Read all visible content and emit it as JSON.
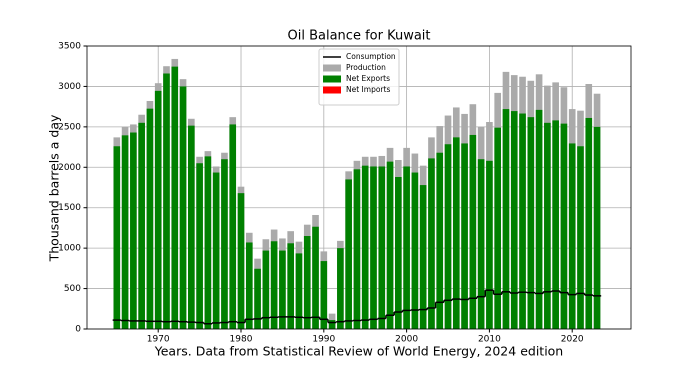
{
  "chart_data": {
    "type": "bar",
    "title": "Oil Balance for Kuwait",
    "x_label": "Years. Data from Statistical Review of World Energy, 2024 edition",
    "y_label": "Thousand barrels a day",
    "x": [
      1965,
      1966,
      1967,
      1968,
      1969,
      1970,
      1971,
      1972,
      1973,
      1974,
      1975,
      1976,
      1977,
      1978,
      1979,
      1980,
      1981,
      1982,
      1983,
      1984,
      1985,
      1986,
      1987,
      1988,
      1989,
      1990,
      1991,
      1992,
      1993,
      1994,
      1995,
      1996,
      1997,
      1998,
      1999,
      2000,
      2001,
      2002,
      2003,
      2004,
      2005,
      2006,
      2007,
      2008,
      2009,
      2010,
      2011,
      2012,
      2013,
      2014,
      2015,
      2016,
      2017,
      2018,
      2019,
      2020,
      2021,
      2022,
      2023
    ],
    "series": [
      {
        "name": "Consumption",
        "color": "#000000",
        "kind": "step",
        "values": [
          110,
          105,
          100,
          100,
          95,
          95,
          90,
          95,
          90,
          85,
          80,
          65,
          75,
          80,
          90,
          80,
          120,
          125,
          140,
          145,
          150,
          150,
          145,
          140,
          145,
          120,
          80,
          90,
          100,
          105,
          110,
          120,
          130,
          170,
          210,
          230,
          235,
          240,
          260,
          330,
          355,
          370,
          365,
          380,
          400,
          480,
          430,
          460,
          445,
          455,
          450,
          440,
          460,
          470,
          450,
          425,
          440,
          420,
          410
        ]
      },
      {
        "name": "Production",
        "color": "#aaaaaa",
        "kind": "bar",
        "values": [
          2370,
          2500,
          2530,
          2650,
          2820,
          3040,
          3250,
          3340,
          3090,
          2600,
          2130,
          2200,
          2010,
          2180,
          2620,
          1760,
          1190,
          870,
          1110,
          1230,
          1120,
          1210,
          1080,
          1290,
          1410,
          960,
          190,
          1090,
          1950,
          2080,
          2130,
          2130,
          2140,
          2240,
          2090,
          2240,
          2170,
          2020,
          2370,
          2510,
          2640,
          2740,
          2660,
          2780,
          2500,
          2560,
          2920,
          3180,
          3140,
          3120,
          3070,
          3150,
          3010,
          3050,
          2990,
          2720,
          2700,
          3030,
          2910
        ]
      },
      {
        "name": "Net Exports",
        "color": "#008000",
        "kind": "bar",
        "values": [
          2260,
          2395,
          2430,
          2550,
          2725,
          2945,
          3160,
          3245,
          3000,
          2515,
          2050,
          2135,
          1935,
          2100,
          2530,
          1680,
          1070,
          745,
          970,
          1085,
          970,
          1060,
          935,
          1150,
          1265,
          840,
          110,
          1000,
          1850,
          1975,
          2020,
          2010,
          2010,
          2070,
          1880,
          2010,
          1935,
          1780,
          2110,
          2180,
          2285,
          2370,
          2295,
          2400,
          2100,
          2080,
          2490,
          2720,
          2695,
          2665,
          2620,
          2710,
          2550,
          2580,
          2540,
          2295,
          2260,
          2610,
          2500
        ]
      },
      {
        "name": "Net Imports",
        "color": "#ff0000",
        "kind": "bar",
        "values": [
          null,
          null,
          null,
          null,
          null,
          null,
          null,
          null,
          null,
          null,
          null,
          null,
          null,
          null,
          null,
          null,
          null,
          null,
          null,
          null,
          null,
          null,
          null,
          null,
          null,
          null,
          null,
          null,
          null,
          null,
          null,
          null,
          null,
          null,
          null,
          null,
          null,
          null,
          null,
          null,
          null,
          null,
          null,
          null,
          null,
          null,
          null,
          null,
          null,
          null,
          null,
          null,
          null,
          null,
          null,
          null,
          null,
          null,
          null
        ]
      }
    ],
    "xlim": [
      1961.4,
      2027.1
    ],
    "xticks": [
      1970,
      1980,
      1990,
      2000,
      2010,
      2020
    ],
    "ylim": [
      0,
      3500
    ],
    "yticks": [
      0,
      500,
      1000,
      1500,
      2000,
      2500,
      3000,
      3500
    ],
    "grid": true,
    "legend": "upper center"
  }
}
